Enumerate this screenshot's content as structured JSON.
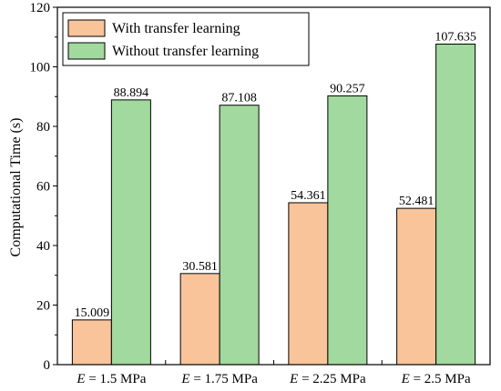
{
  "chart_data": {
    "type": "bar",
    "categories": [
      {
        "prefix": "E",
        "text": " = 1.5 MPa"
      },
      {
        "prefix": "E",
        "text": " = 1.75 MPa"
      },
      {
        "prefix": "E",
        "text": " = 2.25 MPa"
      },
      {
        "prefix": "E",
        "text": " = 2.5 MPa"
      }
    ],
    "series": [
      {
        "name": "With transfer learning",
        "values": [
          15.009,
          30.581,
          54.361,
          52.481
        ],
        "labels": [
          "15.009",
          "30.581",
          "54.361",
          "52.481"
        ],
        "color": "#F9C49A"
      },
      {
        "name": "Without transfer learning",
        "values": [
          88.894,
          87.108,
          90.257,
          107.635
        ],
        "labels": [
          "88.894",
          "87.108",
          "90.257",
          "107.635"
        ],
        "color": "#A2D99E"
      }
    ],
    "ylabel": "Computational Time (s)",
    "ylim": [
      0,
      120
    ],
    "yticks": [
      0,
      20,
      40,
      60,
      80,
      100,
      120
    ],
    "grid": false,
    "legend_position": "top-left"
  }
}
